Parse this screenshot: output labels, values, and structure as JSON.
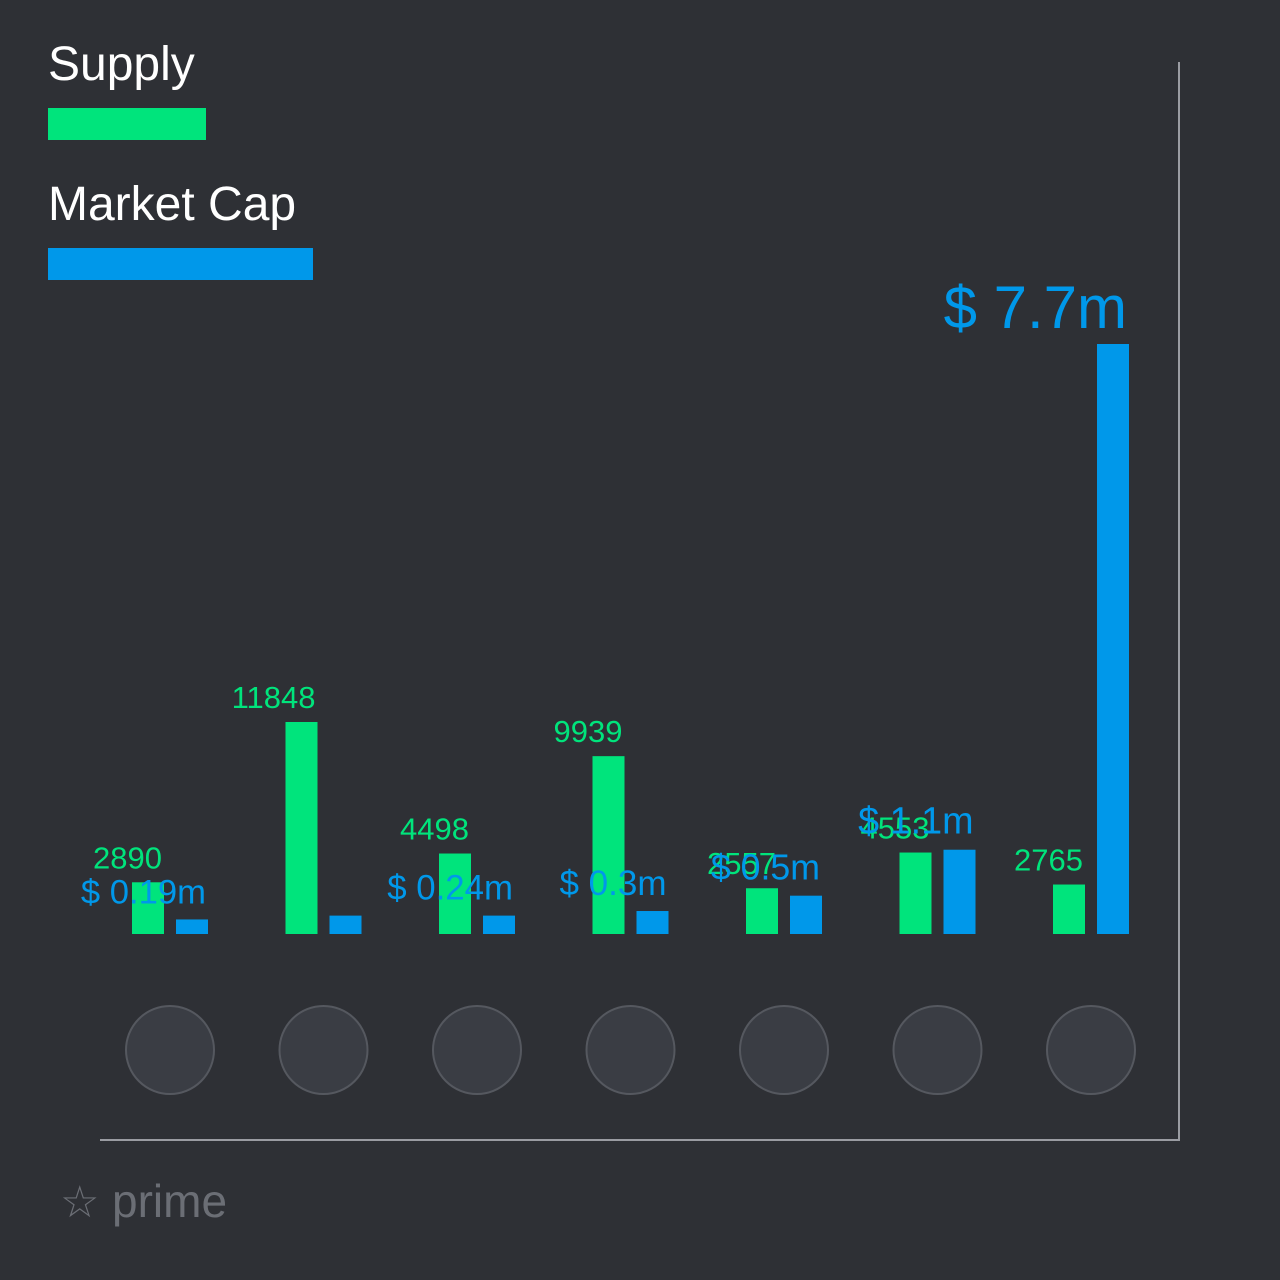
{
  "chart_data": {
    "type": "bar",
    "categories": [
      null,
      null,
      null,
      null,
      null,
      null,
      null
    ],
    "series": [
      {
        "name": "Supply",
        "color": "#00e47c",
        "values": [
          2890,
          11848,
          4498,
          9939,
          2557,
          4553,
          2765
        ]
      },
      {
        "name": "Market Cap",
        "color": "#0098ea",
        "values": [
          0.19,
          0.24,
          0.24,
          0.3,
          0.5,
          1.1,
          7.7
        ],
        "value_labels": [
          "$ 0.19m",
          null,
          "$ 0.24m",
          "$ 0.3m",
          "$ 0.5m",
          "$ 1.1m",
          "$ 7.7m"
        ]
      }
    ],
    "watermark": "prime"
  }
}
